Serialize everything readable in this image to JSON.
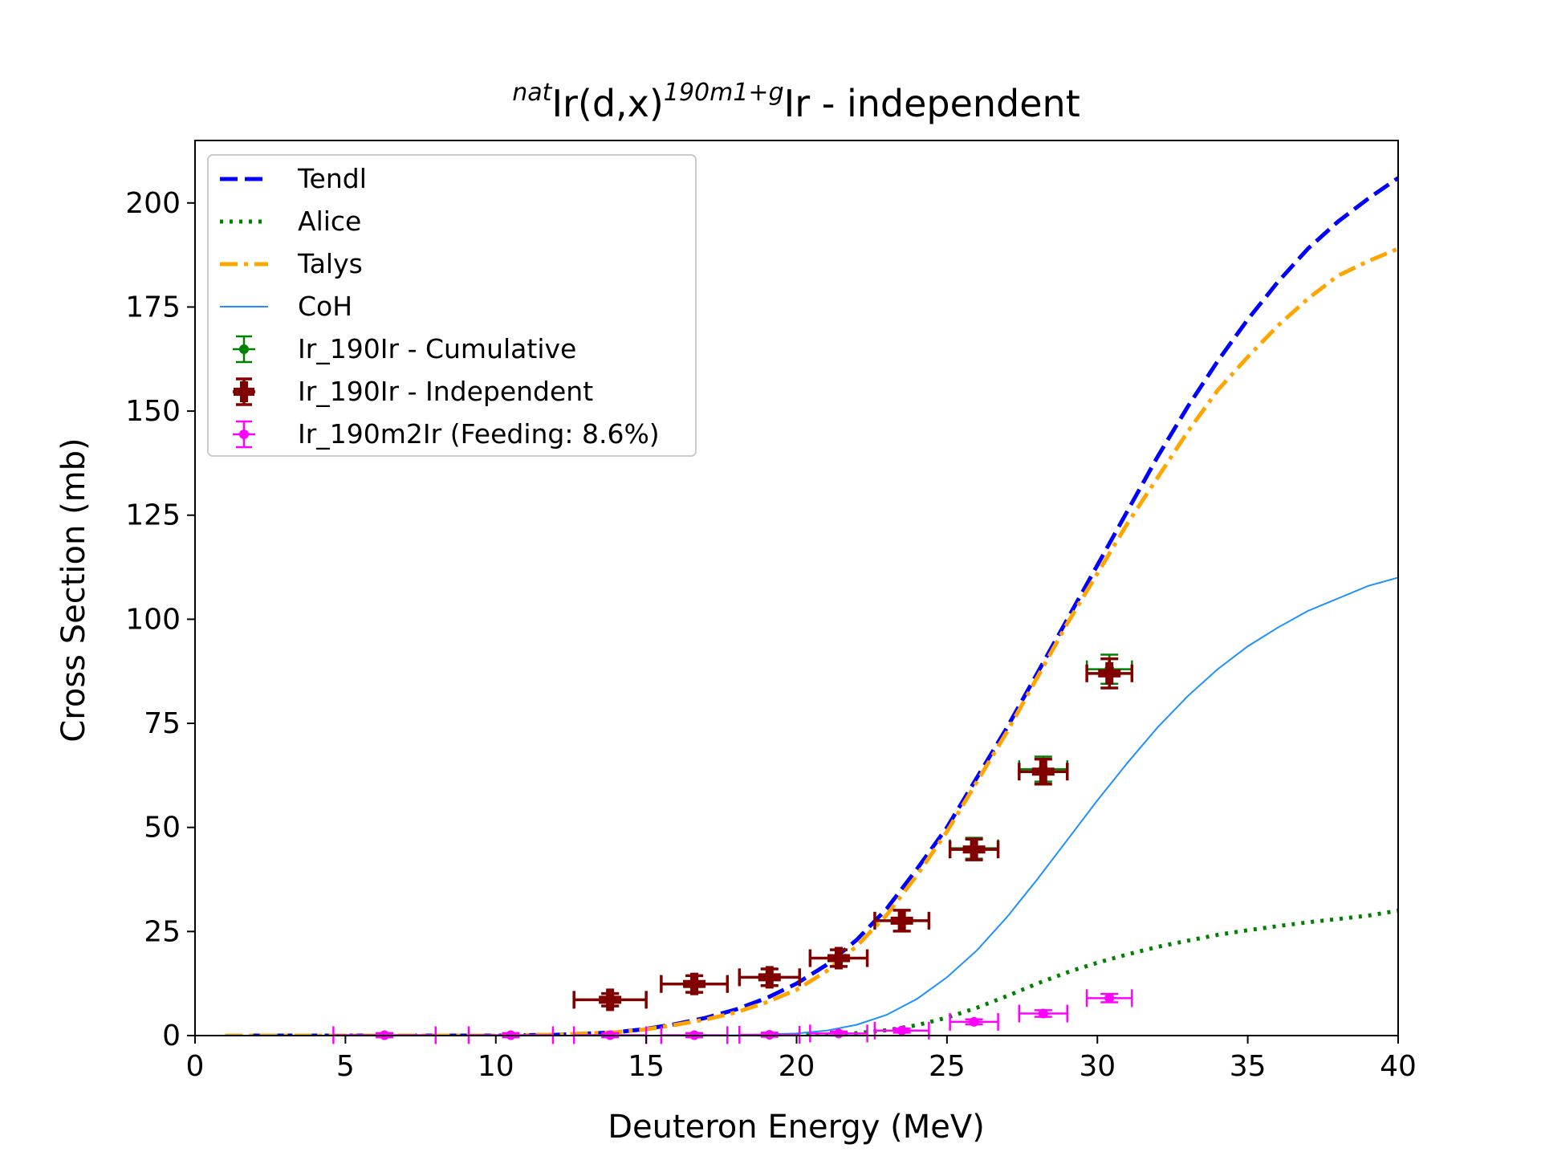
{
  "chart_data": {
    "type": "line",
    "title": {
      "pre": "nat",
      "main": "Ir(d,x)",
      "sup": "190m1+g",
      "post": "Ir - independent"
    },
    "xlabel": "Deuteron Energy (MeV)",
    "ylabel": "Cross Section (mb)",
    "xlim": [
      0,
      40
    ],
    "ylim": [
      0,
      215
    ],
    "xticks": [
      0,
      5,
      10,
      15,
      20,
      25,
      30,
      35,
      40
    ],
    "yticks": [
      0,
      25,
      50,
      75,
      100,
      125,
      150,
      175,
      200
    ],
    "grid": false,
    "legend_position": "upper-left",
    "series": [
      {
        "name": "Tendl",
        "kind": "line",
        "style": "dashed",
        "color": "#0000ff",
        "x": [
          1,
          5,
          10,
          12,
          14,
          15,
          16,
          17,
          18,
          19,
          20,
          21,
          22,
          23,
          24,
          25,
          26,
          27,
          28,
          29,
          30,
          31,
          32,
          33,
          34,
          35,
          36,
          37,
          38,
          39,
          40
        ],
        "y": [
          0,
          0,
          0,
          0.2,
          0.8,
          1.6,
          2.8,
          4.3,
          6.3,
          9.0,
          12.5,
          17.0,
          23.0,
          30.5,
          40.0,
          50.0,
          62.0,
          74.0,
          87.0,
          100.0,
          113.0,
          126.0,
          139.0,
          151.0,
          162.0,
          172.0,
          181.0,
          189.0,
          195.5,
          201.0,
          206.0
        ]
      },
      {
        "name": "Alice",
        "kind": "line",
        "style": "dotted",
        "color": "#008000",
        "x": [
          20,
          21,
          22,
          23,
          24,
          25,
          26,
          27,
          28,
          29,
          30,
          31,
          32,
          33,
          34,
          35,
          36,
          37,
          38,
          39,
          40
        ],
        "y": [
          0,
          0.2,
          0.6,
          1.3,
          2.5,
          4.3,
          6.7,
          9.5,
          12.5,
          15.2,
          17.5,
          19.5,
          21.3,
          22.8,
          24.2,
          25.3,
          26.3,
          27.2,
          28.0,
          28.8,
          30.0
        ]
      },
      {
        "name": "Talys",
        "kind": "line",
        "style": "dashdot",
        "color": "#ffa500",
        "x": [
          1,
          5,
          10,
          12,
          14,
          15,
          16,
          17,
          18,
          19,
          20,
          21,
          22,
          23,
          24,
          25,
          26,
          27,
          28,
          29,
          30,
          31,
          32,
          33,
          34,
          35,
          36,
          37,
          38,
          39,
          40
        ],
        "y": [
          0,
          0,
          0,
          0.2,
          0.8,
          1.5,
          2.6,
          3.9,
          5.6,
          8.0,
          11.0,
          15.5,
          21.5,
          29.0,
          38.5,
          49.0,
          61.0,
          73.0,
          86.0,
          99.0,
          111.0,
          123.0,
          134.0,
          145.0,
          155.0,
          163.0,
          170.5,
          177.0,
          182.5,
          186.0,
          189.0
        ]
      },
      {
        "name": "CoH",
        "kind": "line",
        "style": "solid",
        "color": "#1e90ff",
        "x": [
          15,
          18,
          20,
          21,
          22,
          23,
          24,
          25,
          26,
          27,
          28,
          29,
          30,
          31,
          32,
          33,
          34,
          35,
          36,
          37,
          38,
          39,
          40
        ],
        "y": [
          0,
          0.1,
          0.5,
          1.2,
          2.6,
          5.0,
          8.8,
          14.0,
          20.5,
          28.5,
          37.5,
          47.0,
          56.5,
          65.5,
          74.0,
          81.5,
          88.0,
          93.5,
          98.0,
          102.0,
          105.0,
          108.0,
          110.0
        ]
      },
      {
        "name": "Ir_190Ir - Cumulative",
        "kind": "errorbar",
        "marker": "circle",
        "color": "#008000",
        "x": [
          13.8,
          16.6,
          19.1,
          21.4,
          23.5,
          25.9,
          28.2,
          30.4
        ],
        "y": [
          8.6,
          12.4,
          14.0,
          18.6,
          27.6,
          45.0,
          64.0,
          88.0
        ],
        "xerr": [
          1.2,
          1.1,
          1.0,
          0.95,
          0.9,
          0.8,
          0.8,
          0.75
        ],
        "yerr": [
          1.5,
          2.0,
          2.0,
          2.0,
          2.5,
          2.5,
          3.0,
          3.5
        ]
      },
      {
        "name": "Ir_190Ir - Independent",
        "kind": "errorbar",
        "marker": "plus",
        "color": "#800000",
        "x": [
          13.8,
          16.6,
          19.1,
          21.4,
          23.5,
          25.9,
          28.2,
          30.4
        ],
        "y": [
          8.6,
          12.4,
          14.0,
          18.6,
          27.6,
          44.7,
          63.4,
          87.0
        ],
        "xerr": [
          1.2,
          1.1,
          1.0,
          0.95,
          0.9,
          0.8,
          0.8,
          0.75
        ],
        "yerr": [
          1.5,
          2.0,
          2.0,
          2.0,
          2.5,
          2.5,
          3.0,
          3.5
        ]
      },
      {
        "name": "Ir_190m2Ir (Feeding: 8.6%)",
        "kind": "errorbar",
        "marker": "circle",
        "color": "#ff00ff",
        "x": [
          6.3,
          10.5,
          13.8,
          16.6,
          19.1,
          21.4,
          23.5,
          25.9,
          28.2,
          30.4
        ],
        "y": [
          0.1,
          0.1,
          0.1,
          0.1,
          0.2,
          0.5,
          1.2,
          3.3,
          5.3,
          9.0
        ],
        "xerr": [
          1.7,
          1.4,
          1.2,
          1.1,
          1.0,
          0.95,
          0.9,
          0.8,
          0.8,
          0.75
        ],
        "yerr": [
          0.5,
          0.5,
          0.5,
          0.5,
          0.5,
          0.5,
          0.5,
          0.6,
          0.8,
          1.0
        ]
      }
    ]
  }
}
